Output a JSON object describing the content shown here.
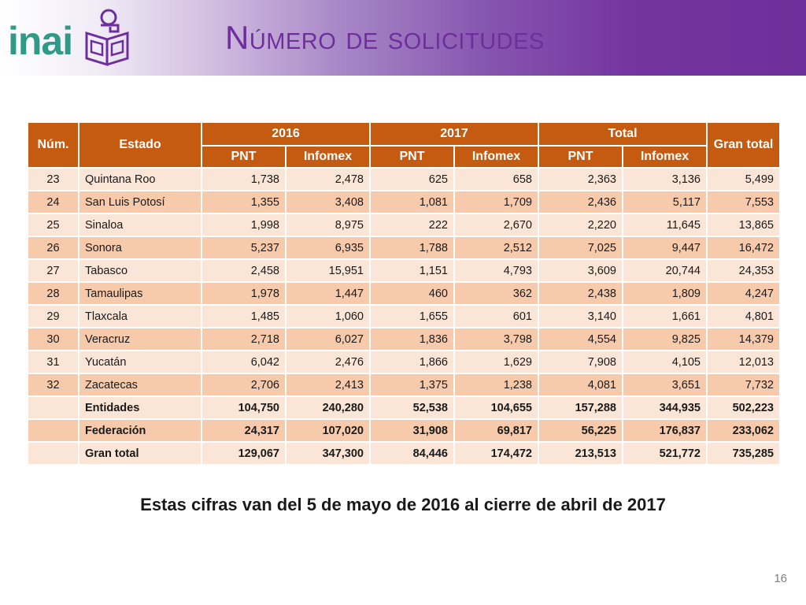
{
  "header": {
    "logo_text": "inai",
    "title": "Número de solicitudes",
    "colors": {
      "purple": "#6e2f9c",
      "logo_green": "#2f9b86"
    }
  },
  "table": {
    "col_num": "Núm.",
    "col_state": "Estado",
    "year_2016": "2016",
    "year_2017": "2017",
    "col_total": "Total",
    "col_grand_total": "Gran total",
    "sub": {
      "pnt": "PNT",
      "infomex": "Infomex"
    },
    "colors": {
      "header_bg": "#c55a11",
      "row_light": "#fbe5d6",
      "row_dark": "#f7caac"
    },
    "rows": [
      {
        "num": "23",
        "state": "Quintana Roo",
        "v": [
          "1,738",
          "2,478",
          "625",
          "658",
          "2,363",
          "3,136",
          "5,499"
        ]
      },
      {
        "num": "24",
        "state": "San Luis Potosí",
        "v": [
          "1,355",
          "3,408",
          "1,081",
          "1,709",
          "2,436",
          "5,117",
          "7,553"
        ]
      },
      {
        "num": "25",
        "state": "Sinaloa",
        "v": [
          "1,998",
          "8,975",
          "222",
          "2,670",
          "2,220",
          "11,645",
          "13,865"
        ]
      },
      {
        "num": "26",
        "state": "Sonora",
        "v": [
          "5,237",
          "6,935",
          "1,788",
          "2,512",
          "7,025",
          "9,447",
          "16,472"
        ]
      },
      {
        "num": "27",
        "state": "Tabasco",
        "v": [
          "2,458",
          "15,951",
          "1,151",
          "4,793",
          "3,609",
          "20,744",
          "24,353"
        ]
      },
      {
        "num": "28",
        "state": "Tamaulipas",
        "v": [
          "1,978",
          "1,447",
          "460",
          "362",
          "2,438",
          "1,809",
          "4,247"
        ]
      },
      {
        "num": "29",
        "state": "Tlaxcala",
        "v": [
          "1,485",
          "1,060",
          "1,655",
          "601",
          "3,140",
          "1,661",
          "4,801"
        ]
      },
      {
        "num": "30",
        "state": "Veracruz",
        "v": [
          "2,718",
          "6,027",
          "1,836",
          "3,798",
          "4,554",
          "9,825",
          "14,379"
        ]
      },
      {
        "num": "31",
        "state": "Yucatán",
        "v": [
          "6,042",
          "2,476",
          "1,866",
          "1,629",
          "7,908",
          "4,105",
          "12,013"
        ]
      },
      {
        "num": "32",
        "state": "Zacatecas",
        "v": [
          "2,706",
          "2,413",
          "1,375",
          "1,238",
          "4,081",
          "3,651",
          "7,732"
        ]
      }
    ],
    "totals": [
      {
        "label": "Entidades",
        "v": [
          "104,750",
          "240,280",
          "52,538",
          "104,655",
          "157,288",
          "344,935",
          "502,223"
        ]
      },
      {
        "label": "Federación",
        "v": [
          "24,317",
          "107,020",
          "31,908",
          "69,817",
          "56,225",
          "176,837",
          "233,062"
        ]
      },
      {
        "label": "Gran total",
        "v": [
          "129,067",
          "347,300",
          "84,446",
          "174,472",
          "213,513",
          "521,772",
          "735,285"
        ]
      }
    ]
  },
  "note": "Estas cifras van del 5 de mayo de 2016 al cierre de abril de 2017",
  "page_number": "16"
}
